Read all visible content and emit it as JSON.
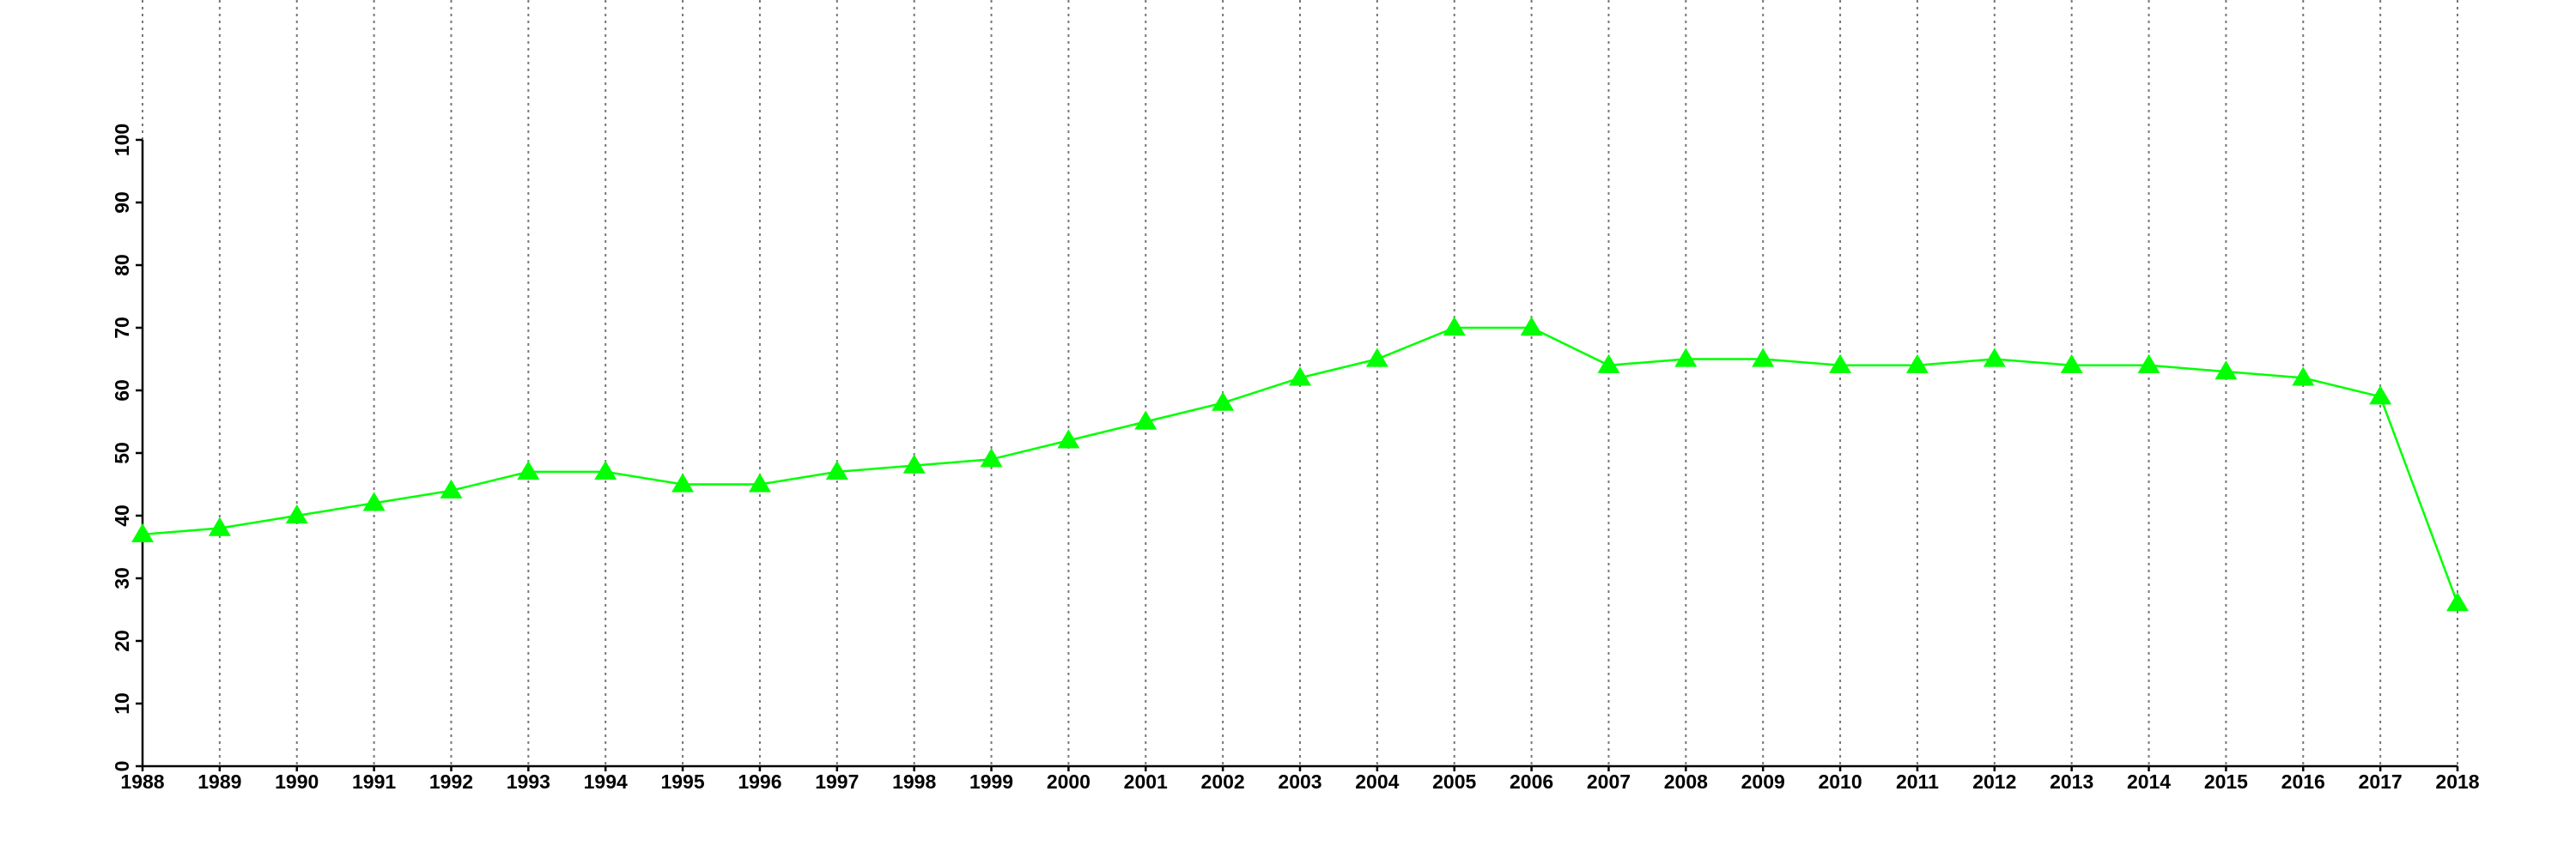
{
  "chart_data": {
    "type": "line",
    "x": [
      1988,
      1989,
      1990,
      1991,
      1992,
      1993,
      1994,
      1995,
      1996,
      1997,
      1998,
      1999,
      2000,
      2001,
      2002,
      2003,
      2004,
      2005,
      2006,
      2007,
      2008,
      2009,
      2010,
      2011,
      2012,
      2013,
      2014,
      2015,
      2016,
      2017,
      2018
    ],
    "series": [
      {
        "color": "#00ff00",
        "marker": "triangle",
        "values": [
          37,
          38,
          40,
          42,
          44,
          47,
          47,
          45,
          45,
          47,
          48,
          49,
          52,
          55,
          58,
          62,
          65,
          70,
          70,
          64,
          65,
          65,
          64,
          64,
          65,
          64,
          64,
          63,
          62,
          59,
          26
        ]
      }
    ],
    "xlim": [
      1988,
      2018
    ],
    "xticks": [
      1988,
      1989,
      1990,
      1991,
      1992,
      1993,
      1994,
      1995,
      1996,
      1997,
      1998,
      1999,
      2000,
      2001,
      2002,
      2003,
      2004,
      2005,
      2006,
      2007,
      2008,
      2009,
      2010,
      2011,
      2012,
      2013,
      2014,
      2015,
      2016,
      2017,
      2018
    ],
    "ylim": [
      0,
      100
    ],
    "yticks": [
      0,
      10,
      20,
      30,
      40,
      50,
      60,
      70,
      80,
      90,
      100
    ],
    "grid": "x"
  }
}
